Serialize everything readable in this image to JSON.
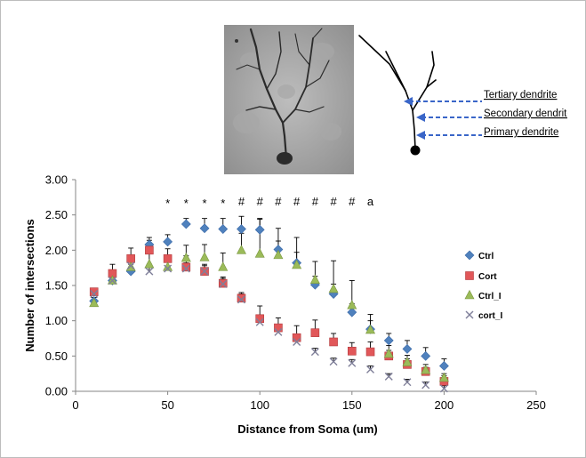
{
  "figure": {
    "schematic_labels": [
      "Tertiary dendrite",
      "Secondary dendrite",
      "Primary dendrite"
    ]
  },
  "chart_data": {
    "type": "scatter",
    "xlabel": "Distance from Soma (um)",
    "ylabel": "Number of intersections",
    "xlim": [
      0,
      250
    ],
    "ylim": [
      0,
      3
    ],
    "x_ticks": [
      "0",
      "50",
      "100",
      "150",
      "200",
      "250"
    ],
    "y_ticks": [
      "0.00",
      "0.50",
      "1.00",
      "1.50",
      "2.00",
      "2.50",
      "3.00"
    ],
    "x": [
      10,
      20,
      30,
      40,
      50,
      60,
      70,
      80,
      90,
      100,
      110,
      120,
      130,
      140,
      150,
      160,
      170,
      180,
      190,
      200
    ],
    "legend_position": "right",
    "series": [
      {
        "name": "Ctrl",
        "color": "#4f81bd",
        "marker": "diamond",
        "values": [
          1.28,
          1.57,
          1.7,
          2.08,
          2.12,
          2.37,
          2.31,
          2.3,
          2.3,
          2.29,
          2.01,
          1.82,
          1.51,
          1.38,
          1.12,
          0.88,
          0.72,
          0.6,
          0.5,
          0.36
        ],
        "error": [
          0.05,
          0.08,
          0.1,
          0.1,
          0.1,
          0.08,
          0.14,
          0.15,
          0.18,
          0.15,
          0.12,
          0.15,
          0.12,
          0.14,
          0.12,
          0.12,
          0.1,
          0.12,
          0.12,
          0.1
        ]
      },
      {
        "name": "Cort",
        "color": "#e15759",
        "marker": "square",
        "values": [
          1.41,
          1.67,
          1.88,
          2.0,
          1.88,
          1.76,
          1.7,
          1.53,
          1.32,
          1.03,
          0.9,
          0.76,
          0.83,
          0.7,
          0.57,
          0.56,
          0.5,
          0.38,
          0.28,
          0.14
        ],
        "error": [
          0.05,
          0.13,
          0.15,
          0.14,
          0.14,
          0.16,
          0.1,
          0.09,
          0.08,
          0.18,
          0.14,
          0.17,
          0.18,
          0.12,
          0.12,
          0.14,
          0.08,
          0.08,
          0.06,
          0.08
        ]
      },
      {
        "name": "Ctrl_I",
        "color": "#9bbb59",
        "marker": "triangle",
        "values": [
          1.25,
          1.57,
          1.76,
          1.8,
          1.76,
          1.89,
          1.9,
          1.76,
          2.0,
          1.95,
          1.93,
          1.79,
          1.58,
          1.45,
          1.22,
          0.87,
          0.53,
          0.41,
          0.3,
          0.19
        ],
        "error": [
          0.04,
          0.1,
          0.12,
          0.16,
          0.14,
          0.18,
          0.18,
          0.2,
          0.24,
          0.5,
          0.38,
          0.39,
          0.26,
          0.4,
          0.35,
          0.22,
          0.12,
          0.1,
          0.08,
          0.06
        ]
      },
      {
        "name": "cort_I",
        "color": "#7f7f99",
        "marker": "x",
        "values": [
          1.38,
          1.57,
          1.78,
          1.7,
          1.74,
          1.74,
          1.7,
          1.52,
          1.3,
          0.98,
          0.84,
          0.7,
          0.56,
          0.42,
          0.4,
          0.31,
          0.21,
          0.13,
          0.09,
          0.04
        ],
        "error": [
          0.05,
          0.08,
          0.08,
          0.1,
          0.1,
          0.08,
          0.08,
          0.08,
          0.08,
          0.06,
          0.06,
          0.05,
          0.05,
          0.05,
          0.05,
          0.05,
          0.04,
          0.04,
          0.04,
          0.04
        ]
      }
    ],
    "annotations": [
      {
        "x": 50,
        "text": "*"
      },
      {
        "x": 60,
        "text": "*"
      },
      {
        "x": 70,
        "text": "*"
      },
      {
        "x": 80,
        "text": "*"
      },
      {
        "x": 90,
        "text": "#"
      },
      {
        "x": 100,
        "text": "#"
      },
      {
        "x": 110,
        "text": "#"
      },
      {
        "x": 120,
        "text": "#"
      },
      {
        "x": 130,
        "text": "#"
      },
      {
        "x": 140,
        "text": "#"
      },
      {
        "x": 150,
        "text": "#"
      },
      {
        "x": 160,
        "text": "a"
      }
    ]
  }
}
